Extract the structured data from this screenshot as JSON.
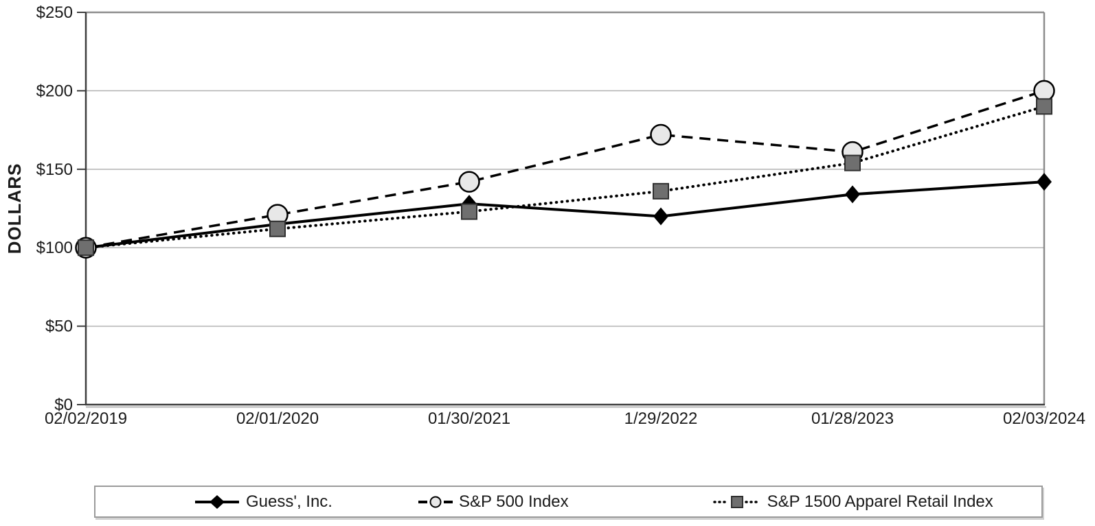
{
  "chart_data": {
    "type": "line",
    "title": "",
    "xlabel": "",
    "ylabel": "DOLLARS",
    "categories": [
      "02/02/2019",
      "02/01/2020",
      "01/30/2021",
      "1/29/2022",
      "01/28/2023",
      "02/03/2024"
    ],
    "series": [
      {
        "name": "Guess', Inc.",
        "line": "solid",
        "marker": "diamond",
        "values": [
          100,
          115,
          128,
          120,
          134,
          142
        ]
      },
      {
        "name": "S&P 500 Index",
        "line": "dashed",
        "marker": "circle",
        "values": [
          100,
          121,
          142,
          172,
          161,
          200
        ]
      },
      {
        "name": "S&P 1500 Apparel Retail Index",
        "line": "dotted",
        "marker": "square",
        "values": [
          100,
          112,
          123,
          136,
          154,
          190
        ]
      }
    ],
    "ylim": [
      0,
      250
    ],
    "yticks": [
      0,
      50,
      100,
      150,
      200,
      250
    ],
    "ytick_labels": [
      "$0",
      "$50",
      "$100",
      "$150",
      "$200",
      "$250"
    ],
    "grid": true,
    "legend_position": "bottom"
  },
  "colors": {
    "series_line": "#000000",
    "diamond_fill": "#000000",
    "circle_fill": "#e8e8e8",
    "circle_stroke": "#000000",
    "square_fill": "#6f6f6f",
    "square_stroke": "#2f2f2f",
    "grid": "#b3b3b3",
    "border_light": "#8c8c8c",
    "axis_dark": "#3d3d3d",
    "axis_shadow": "#b5b5b5",
    "text": "#1a1a1a"
  }
}
